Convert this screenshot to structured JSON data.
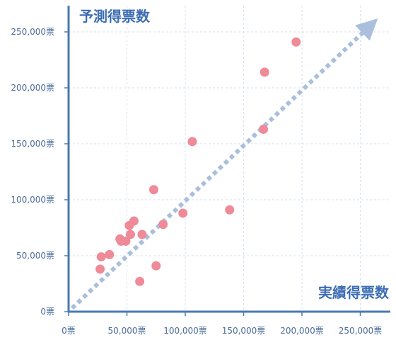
{
  "chart_data": {
    "type": "scatter",
    "title": "",
    "ylabel": "予測得票数",
    "xlabel": "実績得票数",
    "xlim": [
      0,
      275000
    ],
    "ylim": [
      0,
      250000
    ],
    "x_ticks": [
      {
        "value": 0,
        "label": "0票"
      },
      {
        "value": 50000,
        "label": "50,000票"
      },
      {
        "value": 100000,
        "label": "100,000票"
      },
      {
        "value": 150000,
        "label": "150,000票"
      },
      {
        "value": 200000,
        "label": "200,000票"
      },
      {
        "value": 250000,
        "label": "250,000票"
      }
    ],
    "y_ticks": [
      {
        "value": 0,
        "label": "0票"
      },
      {
        "value": 50000,
        "label": "50,000票"
      },
      {
        "value": 100000,
        "label": "100,000票"
      },
      {
        "value": 150000,
        "label": "150,000票"
      },
      {
        "value": 200000,
        "label": "200,000票"
      },
      {
        "value": 250000,
        "label": "250,000票"
      }
    ],
    "grid": true,
    "reference_line": {
      "from": [
        0,
        0
      ],
      "to": [
        265000,
        262000
      ],
      "style": "dotted-arrow"
    },
    "points": [
      {
        "x": 27000,
        "y": 38000
      },
      {
        "x": 28000,
        "y": 49000
      },
      {
        "x": 35000,
        "y": 51000
      },
      {
        "x": 44000,
        "y": 65000
      },
      {
        "x": 45000,
        "y": 63000
      },
      {
        "x": 49000,
        "y": 63000
      },
      {
        "x": 52000,
        "y": 77000
      },
      {
        "x": 53000,
        "y": 69000
      },
      {
        "x": 56000,
        "y": 81000
      },
      {
        "x": 61000,
        "y": 27000
      },
      {
        "x": 63000,
        "y": 69000
      },
      {
        "x": 73000,
        "y": 109000
      },
      {
        "x": 75000,
        "y": 41000
      },
      {
        "x": 81000,
        "y": 78000
      },
      {
        "x": 98000,
        "y": 88000
      },
      {
        "x": 106000,
        "y": 152000
      },
      {
        "x": 138000,
        "y": 91000
      },
      {
        "x": 167000,
        "y": 163000
      },
      {
        "x": 168000,
        "y": 214000
      },
      {
        "x": 195000,
        "y": 241000
      }
    ]
  },
  "colors": {
    "axis": "#4a78b5",
    "grid": "#d6e2f0",
    "point": "#ef8a99",
    "reference": "#a9bfdd",
    "label": "#4a6a9a",
    "title": "#3d6db3"
  }
}
